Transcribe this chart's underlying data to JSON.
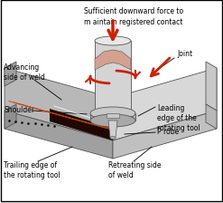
{
  "background_color": "#ffffff",
  "border_color": "#000000",
  "labels": {
    "top_text": "Sufficient downward force to\nm aintain registered contact",
    "joint": "Joint",
    "advancing": "Advancing\nside of weld",
    "shoulder": "Shoulder",
    "leading": "Leading\nedge of the\nrotating tool",
    "probe": "P robe",
    "trailing": "Trailing edge of\nthe rotating tool",
    "retreating": "Retreating side\nof weld"
  },
  "colors": {
    "outline": "#555555",
    "plate_left_top": "#b8b8b8",
    "plate_left_side": "#a0a0a0",
    "plate_right_top": "#d8d8d8",
    "plate_right_side": "#c0c0c0",
    "plate_front_left": "#c8c8c8",
    "plate_front_right": "#e0e0e0",
    "weld_bg": "#200800",
    "weld_line": "#cc4400",
    "tool_body": "#d4d4d4",
    "tool_dark": "#a8a8a8",
    "tool_top_fill": "#e8e8e8",
    "shoulder_top": "#c8c8c8",
    "shoulder_bot": "#b0b0b0",
    "probe_fill": "#d0d0d0",
    "contact_fill": "#d4a090",
    "arrow_red": "#cc2200",
    "text_color": "#000000"
  },
  "figsize": [
    2.47,
    2.24
  ],
  "dpi": 100
}
